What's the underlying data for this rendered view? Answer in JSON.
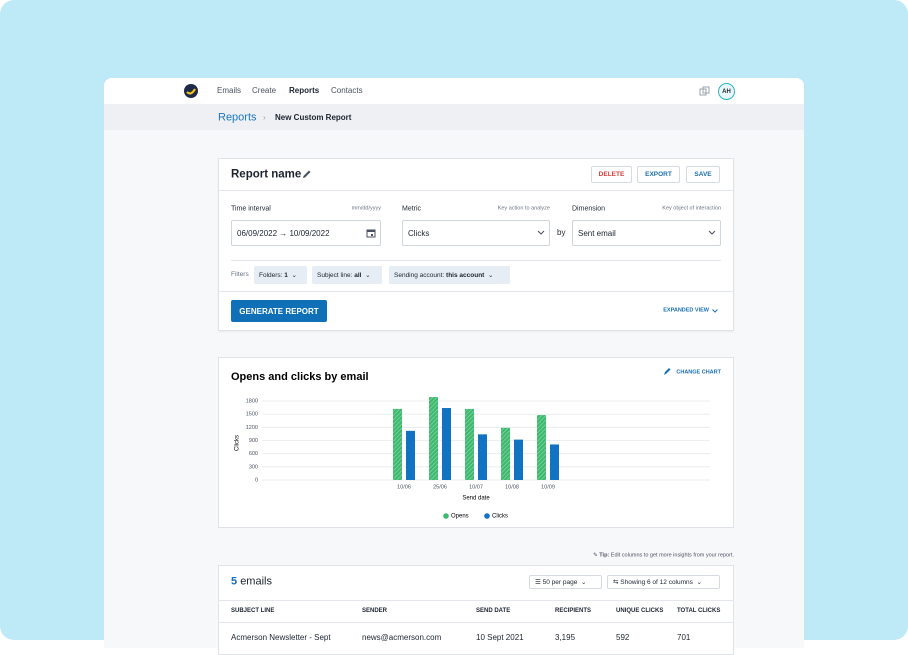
{
  "nav": {
    "items": [
      "Emails",
      "Create",
      "Reports",
      "Contacts"
    ],
    "avatar": "AH"
  },
  "breadcrumb": {
    "parent": "Reports",
    "current": "New Custom Report"
  },
  "report": {
    "name": "Report name",
    "actions": [
      "DELETE",
      "EXPORT",
      "SAVE"
    ],
    "time_interval": {
      "label": "Time interval",
      "hint": "mm/dd/yyyy",
      "value": "06/09/2022 → 10/09/2022"
    },
    "metric": {
      "label": "Metric",
      "hint": "Key action to analyze",
      "value": "Clicks"
    },
    "by": "by",
    "dimension": {
      "label": "Dimension",
      "hint": "Key object of interaction",
      "value": "Sent email"
    },
    "filters": {
      "label": "Filters",
      "chips": [
        {
          "name": "Folders:",
          "value": "1"
        },
        {
          "name": "Subject line:",
          "value": "all"
        },
        {
          "name": "Sending account:",
          "value": "this account"
        }
      ]
    },
    "generate": "GENERATE REPORT",
    "expanded": "EXPANDED VIEW"
  },
  "chart_data": {
    "type": "bar",
    "title": "Opens and clicks by email",
    "change_chart": "CHANGE CHART",
    "y_label": "Clicks",
    "x_label": "Send date",
    "categories": [
      "10/06",
      "25/06",
      "10/07",
      "10/08",
      "10/09"
    ],
    "series": [
      {
        "name": "Opens",
        "color": "#3dba6e",
        "values": [
          1620,
          1890,
          1620,
          1190,
          1480
        ]
      },
      {
        "name": "Clicks",
        "color": "#1272c4",
        "values": [
          1120,
          1640,
          1040,
          920,
          810
        ]
      }
    ],
    "ylim": [
      0,
      1800
    ],
    "yticks": [
      0,
      300,
      600,
      900,
      1200,
      1500,
      1800
    ],
    "grid": true
  },
  "tip": {
    "label": "Tip:",
    "text": "Edit columns to get more insights from your report."
  },
  "table": {
    "count": "5",
    "count_label": "emails",
    "per_page": "50 per page",
    "columns_info": "Showing 6 of 12 columns",
    "headers": [
      "SUBJECT LINE",
      "SENDER",
      "SEND DATE",
      "RECIPIENTS",
      "UNIQUE CLICKS",
      "TOTAL CLICKS"
    ],
    "rows": [
      [
        "Acmerson Newsletter - Sept",
        "news@acmerson.com",
        "10 Sept 2021",
        "3,195",
        "592",
        "701"
      ]
    ]
  }
}
